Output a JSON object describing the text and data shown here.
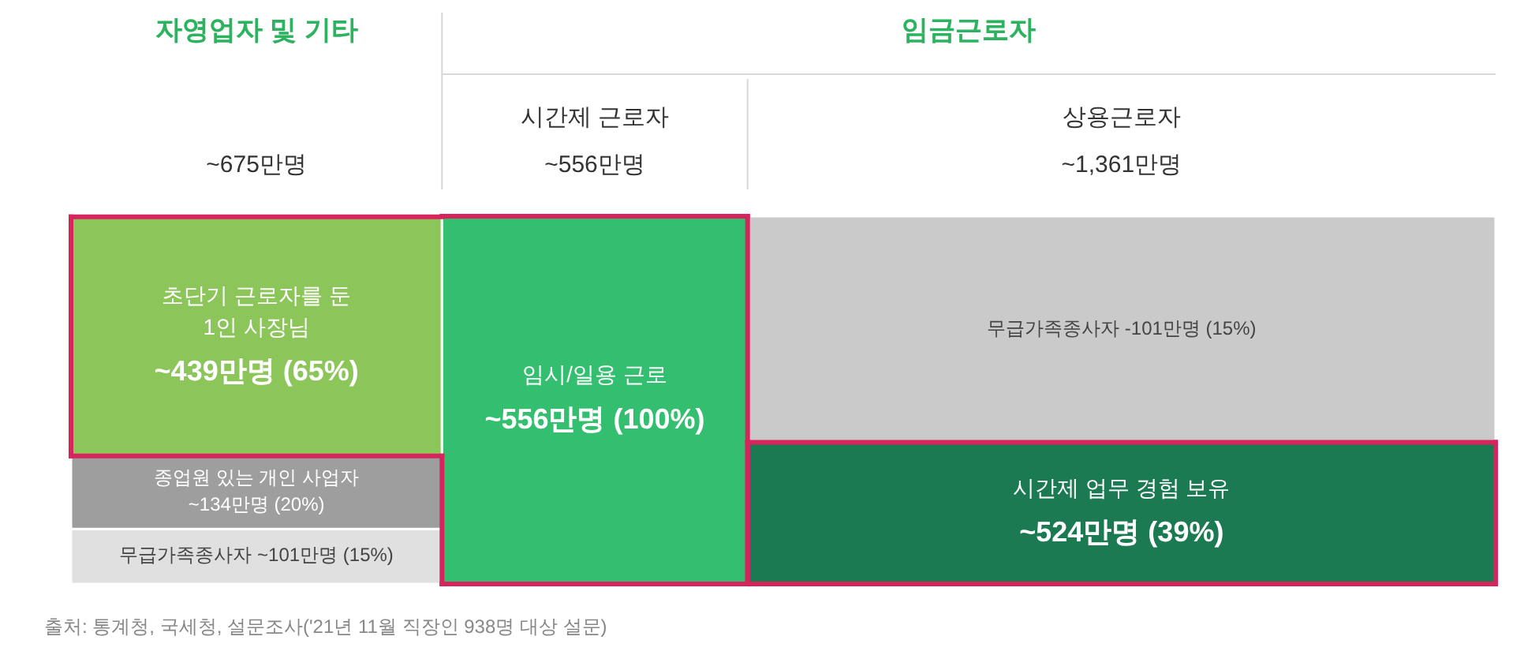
{
  "chart_data": {
    "type": "other",
    "categories": [
      "자영업자 및 기타",
      "시간제 근로자",
      "상용근로자"
    ],
    "values": [
      675,
      556,
      1361
    ],
    "value_labels": [
      "~675만명",
      "~556만명",
      "~1,361만명"
    ],
    "series": [
      {
        "values": [
          101,
          556,
          524
        ],
        "colors": [
          "#e0e0e0",
          "#33bf6f",
          "#1c7a52"
        ],
        "value_labels": [
          "무급가족종사자 ~101만명 (15%)",
          "임시/일용 근로\n~556만명 (100%)",
          "시간제 업무 경험 보유\n~524만명 (39%)"
        ]
      },
      {
        "values": [
          134,
          null,
          null
        ],
        "colors": [
          "#9e9e9e",
          null,
          null
        ],
        "value_labels": [
          "종업원 있는 개인 사업자\n~134만명 (20%)",
          null,
          null
        ]
      },
      {
        "values": [
          439,
          null,
          null
        ],
        "colors": [
          "#8cc65a",
          null,
          "#cacaca"
        ],
        "value_labels": [
          "초단기 근로자를 둔\n1인 사장님\n~439만명 (65%)",
          null,
          "무급가족종사자 -101만명 (15%)"
        ]
      }
    ],
    "annotations": [
      "임금근로자",
      "출처: 통계청, 국세청, 설문조사('21년 11월 직장인 938명 대상 설문)"
    ]
  }
}
